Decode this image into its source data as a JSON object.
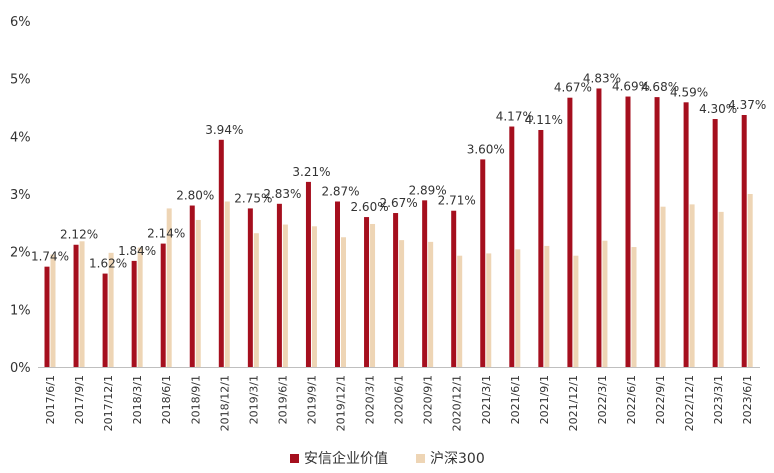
{
  "chart_data": {
    "type": "bar",
    "title": "",
    "xlabel": "",
    "ylabel": "",
    "ylim": [
      0,
      6
    ],
    "yticks": [
      "0%",
      "1%",
      "2%",
      "3%",
      "4%",
      "5%",
      "6%"
    ],
    "grid": false,
    "legend_position": "bottom",
    "categories": [
      "2017/6/1",
      "2017/9/1",
      "2017/12/1",
      "2018/3/1",
      "2018/6/1",
      "2018/9/1",
      "2018/12/1",
      "2019/3/1",
      "2019/6/1",
      "2019/9/1",
      "2019/12/1",
      "2020/3/1",
      "2020/6/1",
      "2020/9/1",
      "2020/12/1",
      "2021/3/1",
      "2021/6/1",
      "2021/9/1",
      "2021/12/1",
      "2022/3/1",
      "2022/6/1",
      "2022/9/1",
      "2022/12/1",
      "2023/3/1",
      "2023/6/1"
    ],
    "series": [
      {
        "name": "安信企业价值",
        "color": "#A50F1E",
        "values": [
          1.74,
          2.12,
          1.62,
          1.84,
          2.14,
          2.8,
          3.94,
          2.75,
          2.83,
          3.21,
          2.87,
          2.6,
          2.67,
          2.89,
          2.71,
          3.6,
          4.17,
          4.11,
          4.67,
          4.83,
          4.69,
          4.68,
          4.59,
          4.3,
          4.37
        ],
        "labels": [
          "1.74%",
          "2.12%",
          "1.62%",
          "1.84%",
          "2.14%",
          "2.80%",
          "3.94%",
          "2.75%",
          "2.83%",
          "3.21%",
          "2.87%",
          "2.60%",
          "2.67%",
          "2.89%",
          "2.71%",
          "3.60%",
          "4.17%",
          "4.11%",
          "4.67%",
          "4.83%",
          "4.69%",
          "4.68%",
          "4.59%",
          "4.30%",
          "4.37%"
        ]
      },
      {
        "name": "沪深300",
        "color": "#EED5B5",
        "values": [
          1.95,
          2.18,
          1.98,
          2.07,
          2.75,
          2.55,
          2.87,
          2.32,
          2.47,
          2.44,
          2.25,
          2.48,
          2.2,
          2.17,
          1.93,
          1.97,
          2.04,
          2.1,
          1.93,
          2.19,
          2.08,
          2.78,
          2.82,
          2.69,
          3.0
        ]
      }
    ]
  }
}
